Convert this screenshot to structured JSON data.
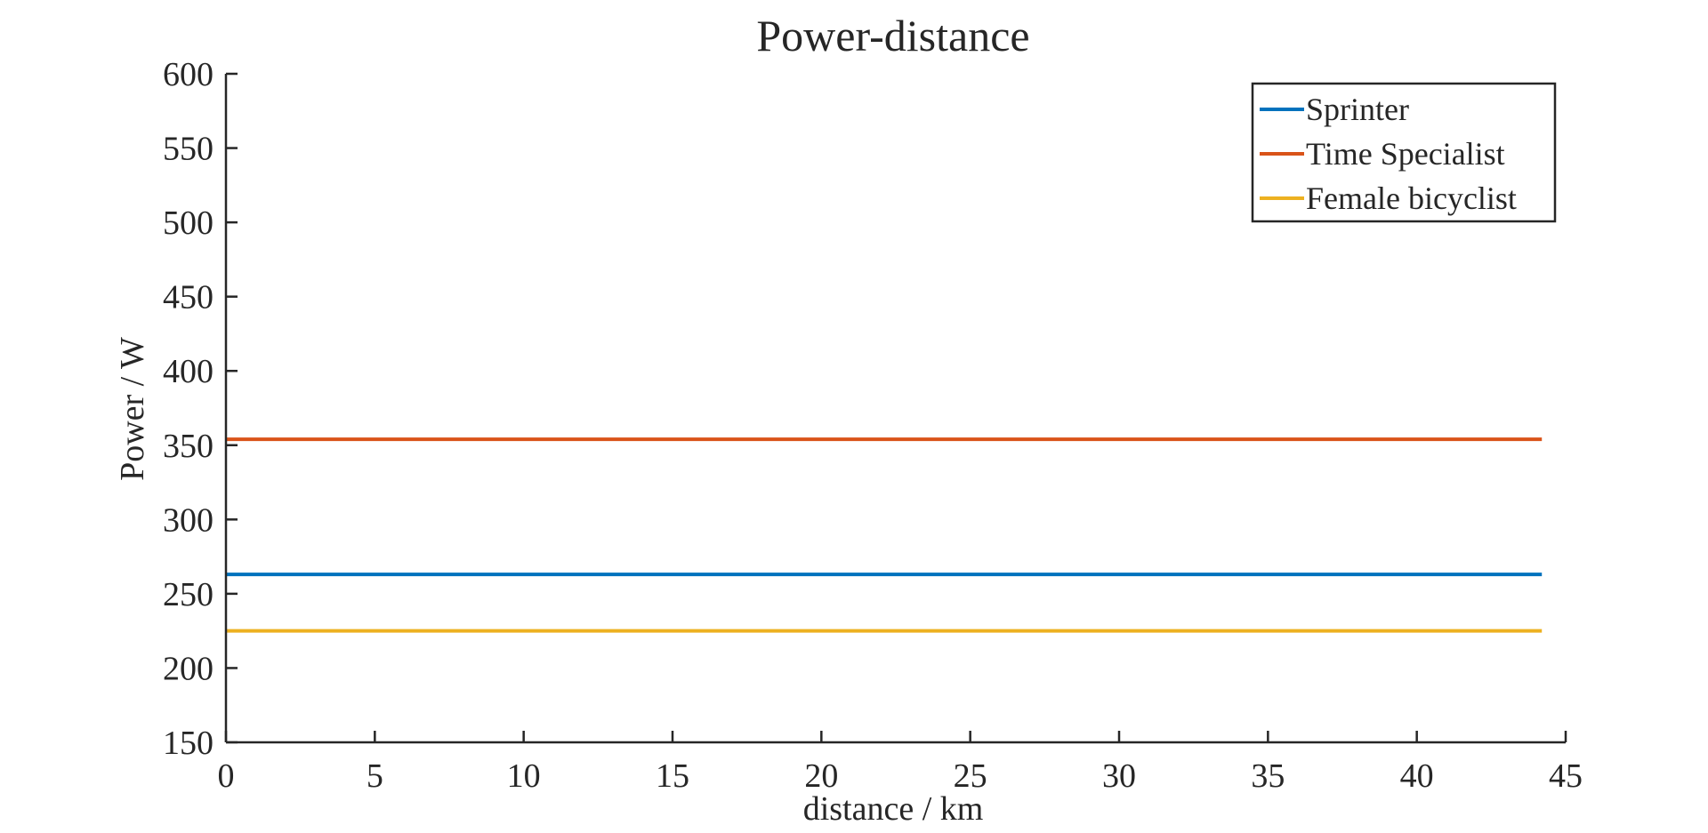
{
  "chart_data": {
    "type": "line",
    "title": "Power-distance",
    "xlabel": "distance / km",
    "ylabel": "Power / W",
    "xlim": [
      0,
      45
    ],
    "ylim": [
      150,
      600
    ],
    "xticks": [
      0,
      5,
      10,
      15,
      20,
      25,
      30,
      35,
      40,
      45
    ],
    "yticks": [
      150,
      200,
      250,
      300,
      350,
      400,
      450,
      500,
      550,
      600
    ],
    "grid": false,
    "legend_position": "top-right",
    "series": [
      {
        "name": "Sprinter",
        "color": "#0072BD",
        "x": [
          0,
          44.2
        ],
        "y": [
          263,
          263
        ]
      },
      {
        "name": "Time Specialist",
        "color": "#D95319",
        "x": [
          0,
          44.2
        ],
        "y": [
          354,
          354
        ]
      },
      {
        "name": "Female bicyclist",
        "color": "#EDB120",
        "x": [
          0,
          44.2
        ],
        "y": [
          225,
          225
        ]
      }
    ]
  }
}
